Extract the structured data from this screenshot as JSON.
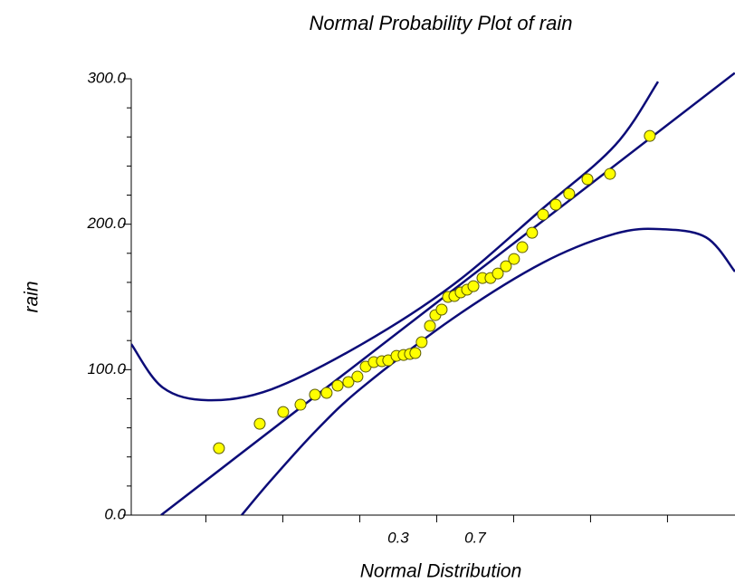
{
  "chart_data": {
    "type": "scatter",
    "title": "Normal Probability Plot of rain",
    "x_label": "Normal Distribution",
    "y_label": "rain",
    "xlim": [
      -1.088,
      2.051
    ],
    "ylim": [
      0,
      300
    ],
    "xticks": [
      0.3,
      0.7
    ],
    "xminor": [
      -0.7,
      -0.3,
      0.1,
      0.5,
      0.9,
      1.3,
      1.7
    ],
    "yticks": [
      {
        "value": 0,
        "label": "0.0"
      },
      {
        "value": 100,
        "label": "100.0"
      },
      {
        "value": 200,
        "label": "200.0"
      },
      {
        "value": 300,
        "label": "300.0"
      }
    ],
    "yminor": [
      20,
      40,
      60,
      80,
      120,
      140,
      160,
      180,
      220,
      240,
      260,
      280
    ],
    "point_color": "#ffff00",
    "point_edge": "#5a5a00",
    "line_color": "#0c0c78",
    "x": [
      -0.632,
      -0.42,
      -0.298,
      -0.208,
      -0.133,
      -0.072,
      -0.015,
      0.041,
      0.088,
      0.131,
      0.173,
      0.215,
      0.248,
      0.291,
      0.328,
      0.361,
      0.389,
      0.422,
      0.465,
      0.493,
      0.526,
      0.559,
      0.592,
      0.625,
      0.658,
      0.691,
      0.738,
      0.78,
      0.818,
      0.86,
      0.902,
      0.945,
      0.996,
      1.053,
      1.119,
      1.189,
      1.284,
      1.401,
      1.608
    ],
    "values": [
      46.0,
      62.8,
      70.9,
      75.9,
      82.8,
      84.0,
      89.0,
      91.5,
      95.2,
      102.1,
      105.2,
      105.8,
      106.4,
      109.5,
      110.1,
      110.8,
      111.4,
      118.9,
      130.1,
      137.5,
      141.3,
      150.0,
      150.6,
      153.1,
      155.0,
      157.4,
      163.0,
      163.0,
      166.1,
      171.1,
      176.1,
      184.2,
      194.1,
      206.6,
      213.4,
      220.9,
      230.9,
      234.6,
      260.7
    ],
    "lines": [
      {
        "x": [
          -0.933,
          2.05
        ],
        "values": [
          0,
          304
        ]
      },
      {
        "x": [
          -1.088,
          -0.924,
          -0.688,
          -0.359,
          0.112,
          0.582,
          1.053,
          1.429,
          1.651
        ],
        "values": [
          117.6,
          87.7,
          79.0,
          86.5,
          117.6,
          158.0,
          211.0,
          254.5,
          298.0
        ]
      },
      {
        "x": [
          -0.514,
          -0.359,
          -0.124,
          0.112,
          0.582,
          1.053,
          1.429,
          1.665,
          1.9,
          2.051
        ],
        "values": [
          0,
          24.3,
          58.5,
          87.7,
          135.0,
          173.6,
          193.5,
          196.6,
          191.0,
          167.4
        ]
      }
    ]
  }
}
